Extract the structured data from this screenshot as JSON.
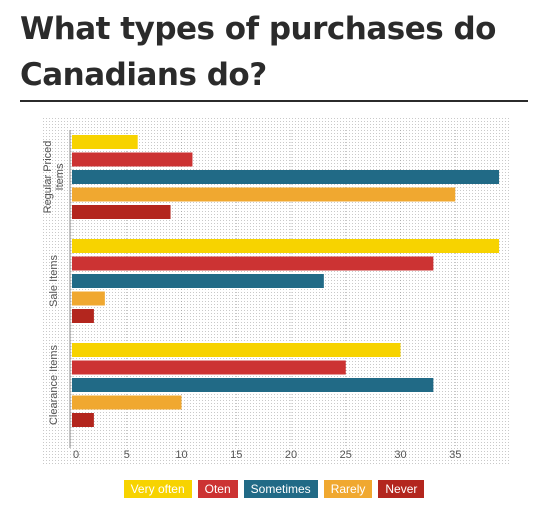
{
  "title": "What types of purchases do Canadians do?",
  "chart_data": {
    "type": "bar",
    "orientation": "horizontal",
    "categories": [
      "Regular Priced Items",
      "Sale Items",
      "Clearance Items"
    ],
    "series": [
      {
        "name": "Very often",
        "color": "#f7d300",
        "values": [
          6,
          39,
          30
        ]
      },
      {
        "name": "Oten",
        "color": "#cc3333",
        "values": [
          11,
          33,
          25
        ]
      },
      {
        "name": "Sometimes",
        "color": "#216a86",
        "values": [
          39,
          23,
          33
        ]
      },
      {
        "name": "Rarely",
        "color": "#f0a830",
        "values": [
          35,
          3,
          10
        ]
      },
      {
        "name": "Never",
        "color": "#b3261e",
        "values": [
          9,
          2,
          2
        ]
      }
    ],
    "xlim": [
      0,
      39
    ],
    "xticks": [
      "0",
      "5",
      "10",
      "15",
      "20",
      "25",
      "30",
      "35"
    ],
    "grid": true,
    "legend_position": "bottom"
  }
}
